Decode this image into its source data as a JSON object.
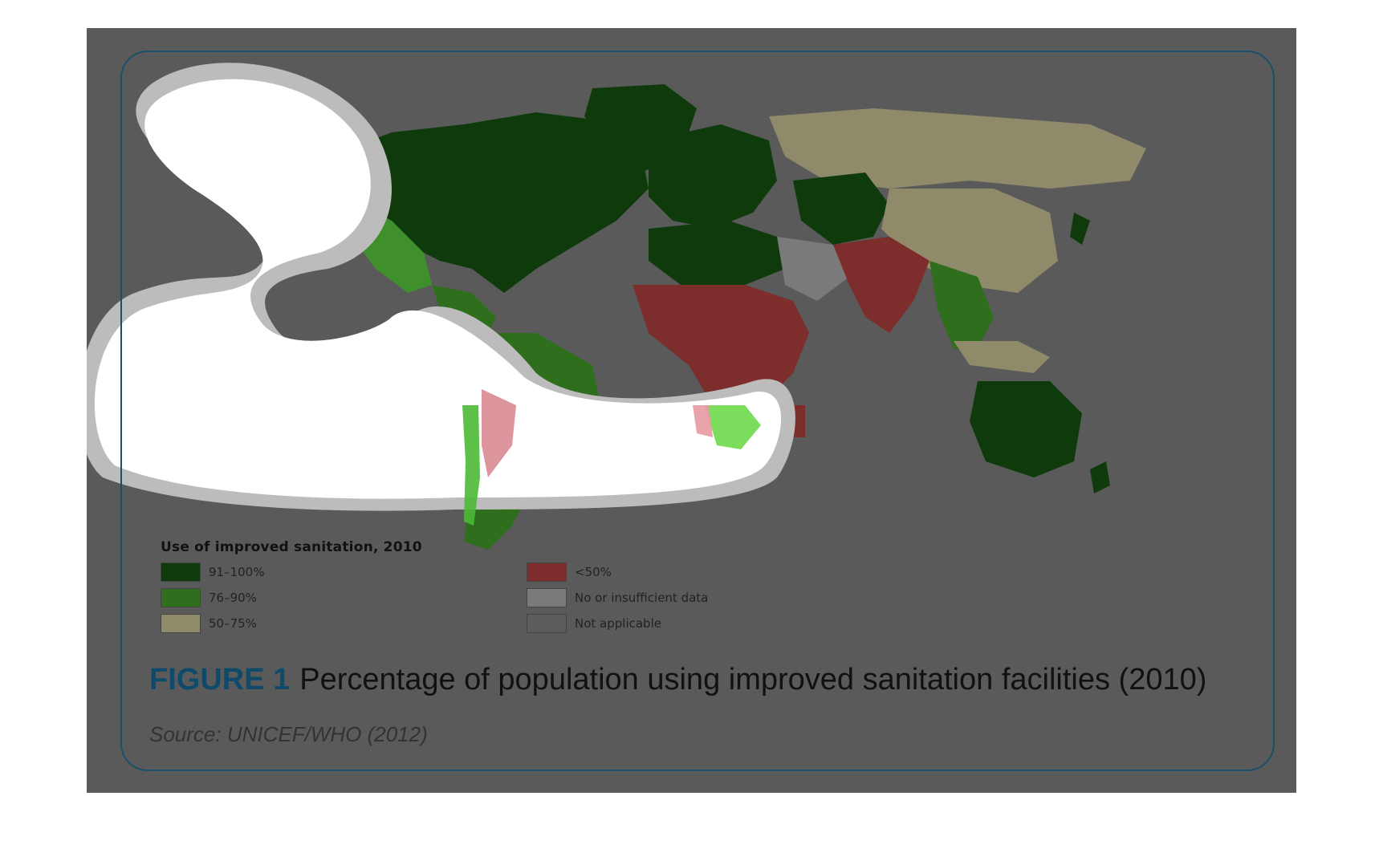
{
  "figure": {
    "number": "FIGURE 1",
    "title": "Percentage of population using improved sanitation facilities (2010)",
    "source": "Source: UNICEF/WHO (2012)"
  },
  "legend": {
    "title": "Use of improved sanitation, 2010",
    "items": [
      {
        "label": "91–100%",
        "color": "#0f3a0c"
      },
      {
        "label": "76–90%",
        "color": "#2f6e1d"
      },
      {
        "label": "50–75%",
        "color": "#8f8a6a"
      },
      {
        "label": "<50%",
        "color": "#7e2d2d"
      },
      {
        "label": "No or insufficient data",
        "color": "#7a7a7a"
      },
      {
        "label": "Not applicable",
        "color": "#5c5c5c"
      }
    ]
  },
  "colors": {
    "overlay": "#5a5a5a",
    "frame": "#1b4f6b",
    "highlight": "#ffffff"
  }
}
